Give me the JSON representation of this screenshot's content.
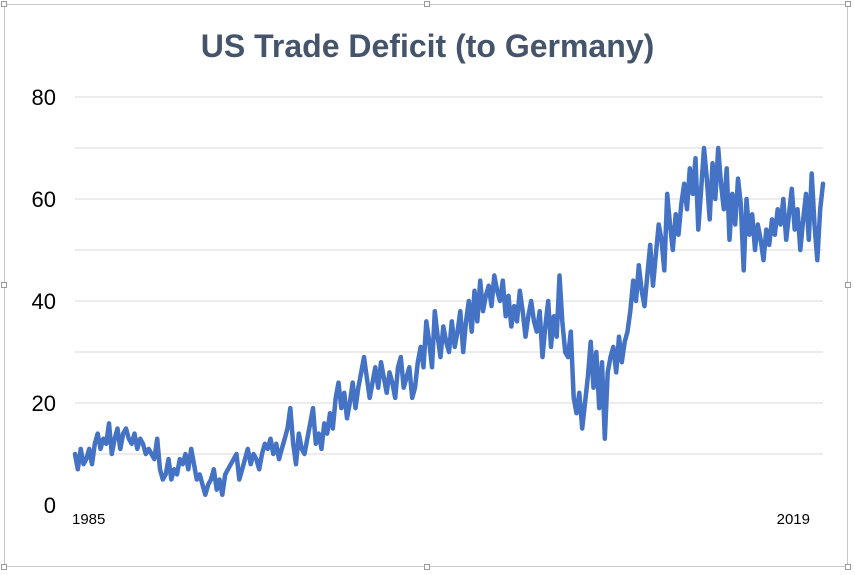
{
  "chart_data": {
    "type": "line",
    "title": "US Trade Deficit (to Germany)",
    "xlabel": "",
    "ylabel": "",
    "x_start_label": "1985",
    "x_end_label": "2019",
    "xlim": [
      1985,
      2019
    ],
    "ylim": [
      0,
      80
    ],
    "yticks": [
      0,
      20,
      40,
      60,
      80
    ],
    "grid": true,
    "legend": "none",
    "series": [
      {
        "color": "#4472c4",
        "values": [
          10,
          7,
          11,
          8,
          9,
          11,
          8,
          12,
          14,
          11,
          13,
          12,
          16,
          10,
          13,
          15,
          11,
          14,
          15,
          13,
          12,
          14,
          11,
          13,
          12,
          10,
          11,
          10,
          9,
          13,
          7,
          5,
          6,
          9,
          5,
          7,
          6,
          9,
          8,
          10,
          7,
          11,
          8,
          5,
          6,
          4,
          2,
          4,
          5,
          7,
          3,
          5,
          2,
          6,
          7,
          8,
          9,
          10,
          5,
          7,
          9,
          11,
          8,
          10,
          9,
          7,
          10,
          12,
          11,
          13,
          10,
          12,
          9,
          11,
          13,
          15,
          19,
          12,
          8,
          14,
          11,
          10,
          13,
          16,
          19,
          12,
          14,
          11,
          16,
          14,
          18,
          15,
          21,
          24,
          19,
          22,
          17,
          20,
          24,
          19,
          23,
          26,
          29,
          25,
          21,
          24,
          27,
          23,
          28,
          25,
          22,
          26,
          24,
          21,
          27,
          29,
          23,
          25,
          27,
          21,
          23,
          28,
          31,
          27,
          36,
          32,
          27,
          38,
          33,
          29,
          35,
          32,
          30,
          36,
          31,
          34,
          38,
          30,
          36,
          40,
          34,
          42,
          36,
          44,
          38,
          41,
          43,
          39,
          45,
          42,
          40,
          44,
          37,
          41,
          35,
          39,
          36,
          42,
          38,
          33,
          37,
          40,
          36,
          34,
          38,
          29,
          35,
          40,
          31,
          37,
          33,
          45,
          36,
          30,
          29,
          34,
          21,
          18,
          22,
          15,
          20,
          25,
          32,
          23,
          30,
          19,
          28,
          13,
          26,
          29,
          31,
          26,
          33,
          28,
          32,
          34,
          38,
          44,
          40,
          47,
          42,
          39,
          45,
          51,
          43,
          49,
          55,
          52,
          46,
          61,
          55,
          50,
          57,
          53,
          59,
          63,
          58,
          66,
          61,
          68,
          54,
          62,
          70,
          64,
          56,
          67,
          60,
          70,
          63,
          58,
          66,
          52,
          61,
          55,
          64,
          59,
          46,
          60,
          53,
          57,
          50,
          55,
          52,
          48,
          54,
          51,
          56,
          53,
          58,
          55,
          60,
          52,
          57,
          62,
          54,
          58,
          50,
          56,
          61,
          52,
          65,
          55,
          48,
          58,
          63
        ]
      }
    ]
  }
}
